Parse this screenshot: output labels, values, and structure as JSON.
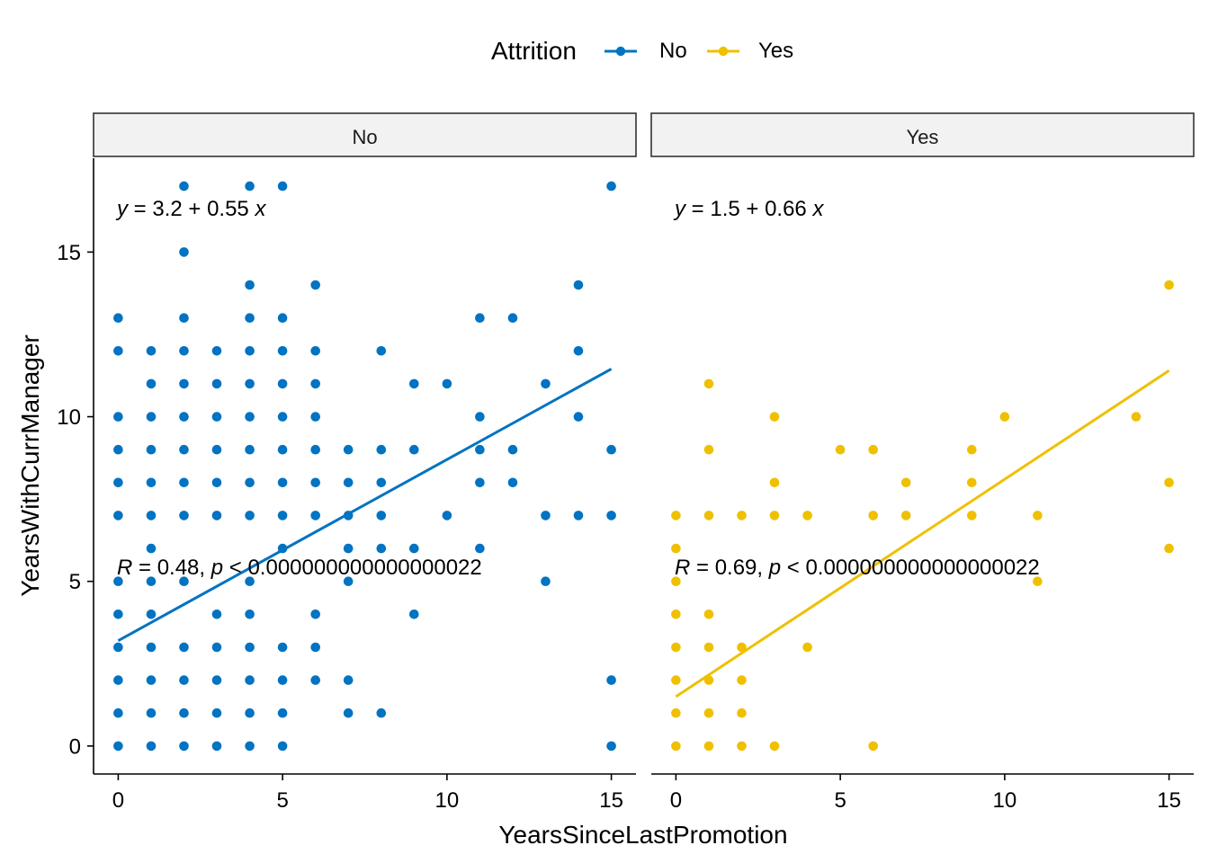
{
  "chart_data": {
    "type": "scatter",
    "xlabel": "YearsSinceLastPromotion",
    "ylabel": "YearsWithCurrManager",
    "xlim": [
      -0.75,
      15.75
    ],
    "ylim": [
      -0.85,
      17.85
    ],
    "x_ticks": [
      "0",
      "5",
      "10",
      "15"
    ],
    "y_ticks": [
      "0",
      "5",
      "10",
      "15"
    ],
    "legend": {
      "title": "Attrition",
      "position": "top",
      "entries": [
        {
          "label": "No",
          "color": "#0073C2"
        },
        {
          "label": "Yes",
          "color": "#EFC000"
        }
      ]
    },
    "panels": [
      {
        "strip": "No",
        "color": "#0073C2",
        "equation": {
          "y": "y",
          "rhs": " = 3.2 + 0.55 ",
          "x": "x"
        },
        "stats": {
          "R": "R",
          "r_text": " = 0.48, ",
          "p": "p",
          "p_text": " < 0.000000000000000022"
        },
        "fit": {
          "intercept": 3.2,
          "slope": 0.55,
          "x_range": [
            0,
            15
          ]
        },
        "points": [
          [
            0,
            13
          ],
          [
            0,
            12
          ],
          [
            0,
            10
          ],
          [
            0,
            9
          ],
          [
            0,
            8
          ],
          [
            0,
            7
          ],
          [
            0,
            5
          ],
          [
            0,
            4
          ],
          [
            0,
            3
          ],
          [
            0,
            2
          ],
          [
            0,
            1
          ],
          [
            0,
            0
          ],
          [
            1,
            12
          ],
          [
            1,
            11
          ],
          [
            1,
            10
          ],
          [
            1,
            9
          ],
          [
            1,
            8
          ],
          [
            1,
            7
          ],
          [
            1,
            6
          ],
          [
            1,
            5
          ],
          [
            1,
            4
          ],
          [
            1,
            3
          ],
          [
            1,
            2
          ],
          [
            1,
            1
          ],
          [
            1,
            0
          ],
          [
            2,
            17
          ],
          [
            2,
            15
          ],
          [
            2,
            13
          ],
          [
            2,
            12
          ],
          [
            2,
            11
          ],
          [
            2,
            10
          ],
          [
            2,
            9
          ],
          [
            2,
            8
          ],
          [
            2,
            7
          ],
          [
            2,
            5
          ],
          [
            2,
            3
          ],
          [
            2,
            2
          ],
          [
            2,
            1
          ],
          [
            2,
            0
          ],
          [
            3,
            12
          ],
          [
            3,
            11
          ],
          [
            3,
            10
          ],
          [
            3,
            9
          ],
          [
            3,
            8
          ],
          [
            3,
            7
          ],
          [
            3,
            4
          ],
          [
            3,
            3
          ],
          [
            3,
            2
          ],
          [
            3,
            1
          ],
          [
            3,
            0
          ],
          [
            4,
            17
          ],
          [
            4,
            14
          ],
          [
            4,
            13
          ],
          [
            4,
            12
          ],
          [
            4,
            11
          ],
          [
            4,
            10
          ],
          [
            4,
            9
          ],
          [
            4,
            8
          ],
          [
            4,
            7
          ],
          [
            4,
            5
          ],
          [
            4,
            4
          ],
          [
            4,
            3
          ],
          [
            4,
            2
          ],
          [
            4,
            1
          ],
          [
            4,
            0
          ],
          [
            5,
            17
          ],
          [
            5,
            13
          ],
          [
            5,
            12
          ],
          [
            5,
            11
          ],
          [
            5,
            10
          ],
          [
            5,
            9
          ],
          [
            5,
            8
          ],
          [
            5,
            7
          ],
          [
            5,
            6
          ],
          [
            5,
            3
          ],
          [
            5,
            2
          ],
          [
            5,
            1
          ],
          [
            5,
            0
          ],
          [
            6,
            14
          ],
          [
            6,
            12
          ],
          [
            6,
            11
          ],
          [
            6,
            10
          ],
          [
            6,
            9
          ],
          [
            6,
            8
          ],
          [
            6,
            7
          ],
          [
            6,
            4
          ],
          [
            6,
            3
          ],
          [
            6,
            2
          ],
          [
            7,
            9
          ],
          [
            7,
            8
          ],
          [
            7,
            7
          ],
          [
            7,
            6
          ],
          [
            7,
            5
          ],
          [
            7,
            2
          ],
          [
            7,
            1
          ],
          [
            8,
            12
          ],
          [
            8,
            9
          ],
          [
            8,
            8
          ],
          [
            8,
            7
          ],
          [
            8,
            6
          ],
          [
            8,
            1
          ],
          [
            9,
            11
          ],
          [
            9,
            9
          ],
          [
            9,
            6
          ],
          [
            9,
            4
          ],
          [
            10,
            11
          ],
          [
            10,
            7
          ],
          [
            11,
            13
          ],
          [
            11,
            10
          ],
          [
            11,
            9
          ],
          [
            11,
            8
          ],
          [
            11,
            6
          ],
          [
            12,
            13
          ],
          [
            12,
            9
          ],
          [
            12,
            8
          ],
          [
            13,
            11
          ],
          [
            13,
            7
          ],
          [
            13,
            5
          ],
          [
            14,
            14
          ],
          [
            14,
            12
          ],
          [
            14,
            10
          ],
          [
            14,
            7
          ],
          [
            15,
            17
          ],
          [
            15,
            9
          ],
          [
            15,
            7
          ],
          [
            15,
            2
          ],
          [
            15,
            0
          ]
        ]
      },
      {
        "strip": "Yes",
        "color": "#EFC000",
        "equation": {
          "y": "y",
          "rhs": " = 1.5 + 0.66 ",
          "x": "x"
        },
        "stats": {
          "R": "R",
          "r_text": " = 0.69, ",
          "p": "p",
          "p_text": " < 0.000000000000000022"
        },
        "fit": {
          "intercept": 1.5,
          "slope": 0.66,
          "x_range": [
            0,
            15
          ]
        },
        "points": [
          [
            0,
            7
          ],
          [
            0,
            6
          ],
          [
            0,
            5
          ],
          [
            0,
            4
          ],
          [
            0,
            3
          ],
          [
            0,
            2
          ],
          [
            0,
            1
          ],
          [
            0,
            0
          ],
          [
            1,
            11
          ],
          [
            1,
            9
          ],
          [
            1,
            7
          ],
          [
            1,
            4
          ],
          [
            1,
            3
          ],
          [
            1,
            2
          ],
          [
            1,
            1
          ],
          [
            1,
            0
          ],
          [
            2,
            7
          ],
          [
            2,
            3
          ],
          [
            2,
            2
          ],
          [
            2,
            1
          ],
          [
            2,
            0
          ],
          [
            3,
            10
          ],
          [
            3,
            8
          ],
          [
            3,
            7
          ],
          [
            3,
            0
          ],
          [
            4,
            7
          ],
          [
            4,
            3
          ],
          [
            5,
            9
          ],
          [
            6,
            9
          ],
          [
            6,
            7
          ],
          [
            6,
            0
          ],
          [
            7,
            8
          ],
          [
            7,
            7
          ],
          [
            9,
            9
          ],
          [
            9,
            8
          ],
          [
            9,
            7
          ],
          [
            10,
            10
          ],
          [
            11,
            7
          ],
          [
            11,
            5
          ],
          [
            14,
            10
          ],
          [
            15,
            14
          ],
          [
            15,
            8
          ],
          [
            15,
            6
          ]
        ]
      }
    ]
  }
}
